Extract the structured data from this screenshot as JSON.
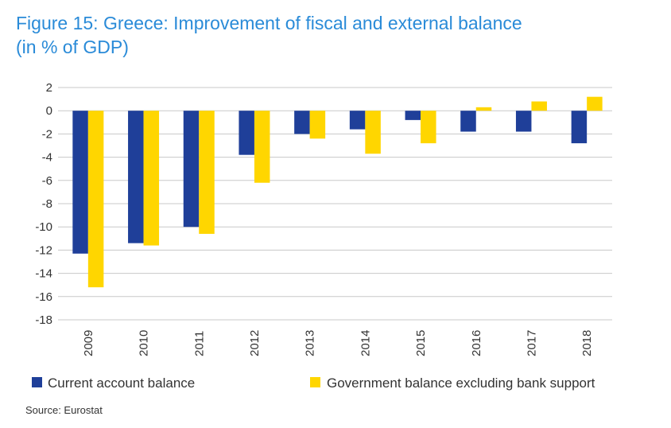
{
  "title_line1": "Figure 15: Greece: Improvement of fiscal and external balance",
  "title_line2": "(in % of GDP)",
  "source": "Source: Eurostat",
  "chart_data": {
    "type": "bar",
    "title": "Figure 15: Greece: Improvement of fiscal and external balance (in % of GDP)",
    "xlabel": "",
    "ylabel": "",
    "ylim": [
      -18,
      2
    ],
    "yticks": [
      "2",
      "0",
      "-2",
      "-4",
      "-6",
      "-8",
      "-10",
      "-12",
      "-14",
      "-16",
      "-18"
    ],
    "ytick_values": [
      2,
      0,
      -2,
      -4,
      -6,
      -8,
      -10,
      -12,
      -14,
      -16,
      -18
    ],
    "grid": true,
    "legend_position": "bottom",
    "categories": [
      "2009",
      "2010",
      "2011",
      "2012",
      "2013",
      "2014",
      "2015",
      "2016",
      "2017",
      "2018"
    ],
    "series": [
      {
        "name": "Current account balance",
        "color": "#1f3f99",
        "values": [
          -12.3,
          -11.4,
          -10.0,
          -3.8,
          -2.0,
          -1.6,
          -0.8,
          -1.8,
          -1.8,
          -2.8
        ]
      },
      {
        "name": "Government balance excluding bank support",
        "color": "#ffd600",
        "values": [
          -15.2,
          -11.6,
          -10.6,
          -6.2,
          -2.4,
          -3.7,
          -2.8,
          0.3,
          0.8,
          1.2
        ]
      }
    ]
  }
}
